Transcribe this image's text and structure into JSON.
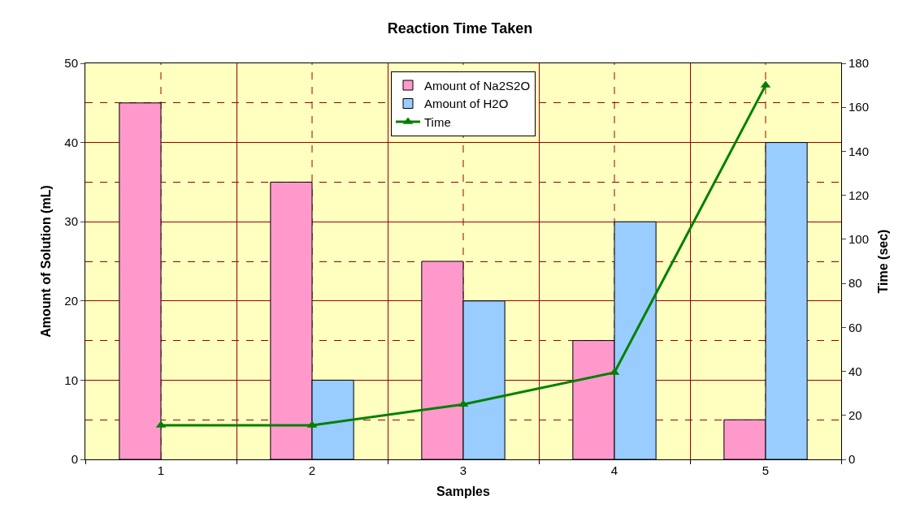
{
  "chart_data": {
    "type": "bar",
    "title": "Reaction Time Taken",
    "xlabel": "Samples",
    "ylabel": "Amount of Solution (mL)",
    "y2label": "Time (sec)",
    "categories": [
      "1",
      "2",
      "3",
      "4",
      "5"
    ],
    "series": [
      {
        "name": "Amount of Na2S2O",
        "color": "#ff99cc",
        "values": [
          45,
          35,
          25,
          15,
          5
        ]
      },
      {
        "name": "Amount of H2O",
        "color": "#99ccff",
        "values": [
          null,
          10,
          20,
          30,
          40
        ]
      },
      {
        "name": "Time",
        "type": "line",
        "axis": "y2",
        "color": "#008000",
        "values": [
          15.5,
          15.5,
          25,
          39.5,
          170
        ]
      }
    ],
    "ylim": [
      0,
      50
    ],
    "yticks": [
      0,
      10,
      20,
      30,
      40,
      50
    ],
    "y2lim": [
      0,
      180
    ],
    "y2ticks": [
      0,
      20,
      40,
      60,
      80,
      100,
      120,
      140,
      160,
      180
    ],
    "grid": true,
    "legend": "top",
    "marker": "triangle",
    "line_style": "solid"
  }
}
